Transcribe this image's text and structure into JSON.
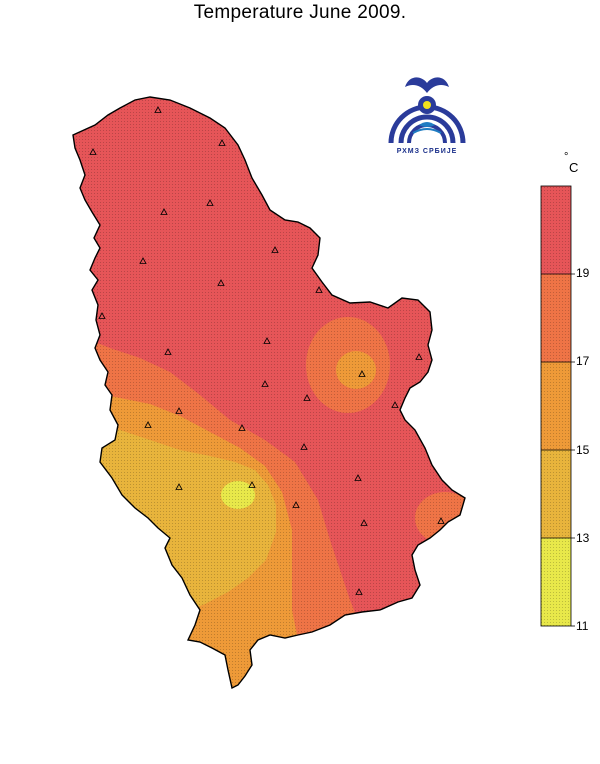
{
  "title": "Temperature June 2009.",
  "logo_text": "РХМЗ СРБИЈЕ",
  "legend": {
    "unit": "C",
    "unit_prefix": "°",
    "classes": [
      {
        "from": 11,
        "to": 13,
        "color": "#e8e84a"
      },
      {
        "from": 13,
        "to": 15,
        "color": "#e8b43c"
      },
      {
        "from": 15,
        "to": 17,
        "color": "#ee9a38"
      },
      {
        "from": 17,
        "to": 19,
        "color": "#ef7446"
      },
      {
        "from": 19,
        "to": null,
        "color": "#e65558"
      }
    ],
    "tick_labels": [
      "19",
      "17",
      "15",
      "13",
      "11"
    ]
  }
}
